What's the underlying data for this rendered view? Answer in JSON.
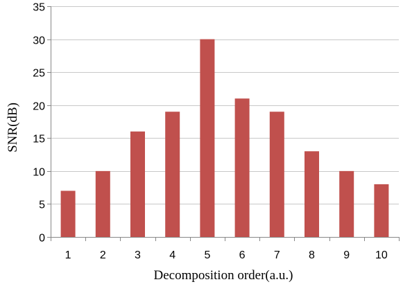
{
  "chart_data": {
    "type": "bar",
    "categories": [
      "1",
      "2",
      "3",
      "4",
      "5",
      "6",
      "7",
      "8",
      "9",
      "10"
    ],
    "values": [
      7,
      10,
      16,
      19,
      30,
      21,
      19,
      13,
      10,
      8
    ],
    "title": "",
    "xlabel": "Decomposition order(a.u.)",
    "ylabel": "SNR(dB)",
    "ylim": [
      0,
      35
    ],
    "yticks": [
      0,
      5,
      10,
      15,
      20,
      25,
      30,
      35
    ],
    "grid": true,
    "legend": "none",
    "bar_color": "#c0504d",
    "grid_color": "#c8c8c8",
    "axis_color": "#878787"
  }
}
